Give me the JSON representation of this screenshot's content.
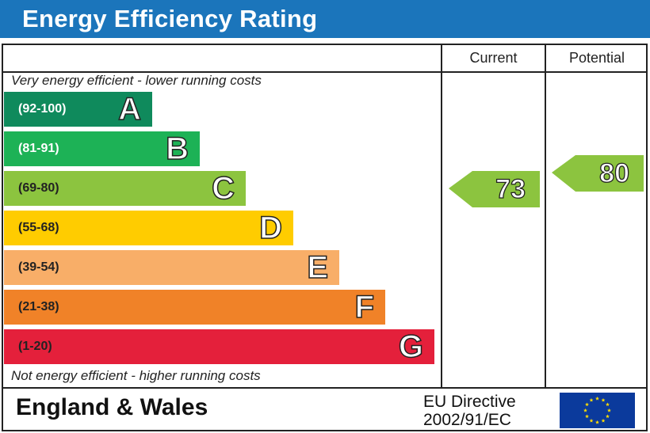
{
  "title": "Energy Efficiency Rating",
  "columns": {
    "current": "Current",
    "potential": "Potential"
  },
  "top_note": "Very energy efficient - lower running costs",
  "bottom_note": "Not energy efficient - higher running costs",
  "bands": [
    {
      "range": "(92-100)",
      "letter": "A",
      "color": "#0f8a5c",
      "range_color": "#ffffff"
    },
    {
      "range": "(81-91)",
      "letter": "B",
      "color": "#1db256",
      "range_color": "#ffffff"
    },
    {
      "range": "(69-80)",
      "letter": "C",
      "color": "#8cc43f",
      "range_color": "#222222"
    },
    {
      "range": "(55-68)",
      "letter": "D",
      "color": "#ffcc00",
      "range_color": "#222222"
    },
    {
      "range": "(39-54)",
      "letter": "E",
      "color": "#f8ae68",
      "range_color": "#222222"
    },
    {
      "range": "(21-38)",
      "letter": "F",
      "color": "#f08228",
      "range_color": "#222222"
    },
    {
      "range": "(1-20)",
      "letter": "G",
      "color": "#e4203b",
      "range_color": "#222222"
    }
  ],
  "ratings": {
    "current": {
      "value": "73",
      "band": "C",
      "color": "#8cc43f"
    },
    "potential": {
      "value": "80",
      "band": "C",
      "color": "#8cc43f"
    }
  },
  "footer": {
    "country": "England & Wales",
    "directive_line1": "EU Directive",
    "directive_line2": "2002/91/EC",
    "flag_icon": "eu-flag-icon"
  }
}
